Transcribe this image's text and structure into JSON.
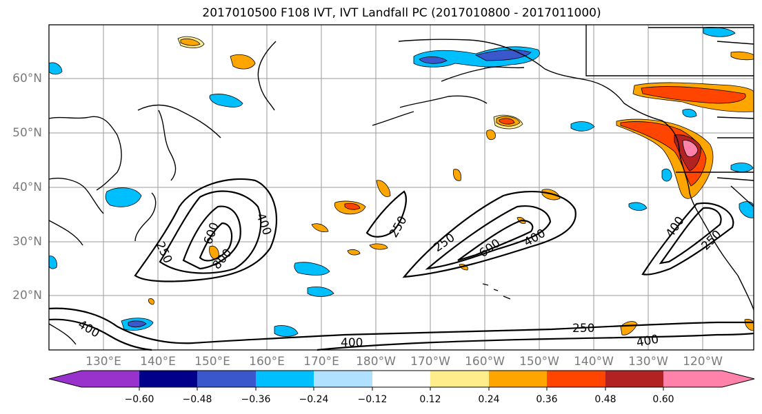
{
  "title": "2017010500 F108 IVT, IVT Landfall PC (2017010800 - 2017011000)",
  "lat_labels": [
    "60°N",
    "50°N",
    "40°N",
    "30°N",
    "20°N"
  ],
  "lon_labels": [
    "130°E",
    "140°E",
    "150°E",
    "160°E",
    "170°E",
    "180°W",
    "170°W",
    "160°W",
    "150°W",
    "140°W",
    "130°W",
    "120°W"
  ],
  "contour_labels": [
    "250",
    "400",
    "600",
    "800",
    "250",
    "250",
    "600",
    "400",
    "400",
    "250",
    "400",
    "250",
    "400",
    "400"
  ],
  "colorbar": {
    "colors": [
      "#9932CC",
      "#00008B",
      "#3A57CC",
      "#00BFFF",
      "#B0E2FF",
      "#FFFFFF",
      "#FFEC8B",
      "#FFA500",
      "#FF4500",
      "#B22222",
      "#FF82AB"
    ],
    "ticks": [
      "−0.60",
      "−0.48",
      "−0.36",
      "−0.24",
      "−0.12",
      "0.12",
      "0.24",
      "0.36",
      "0.48",
      "0.60"
    ]
  }
}
